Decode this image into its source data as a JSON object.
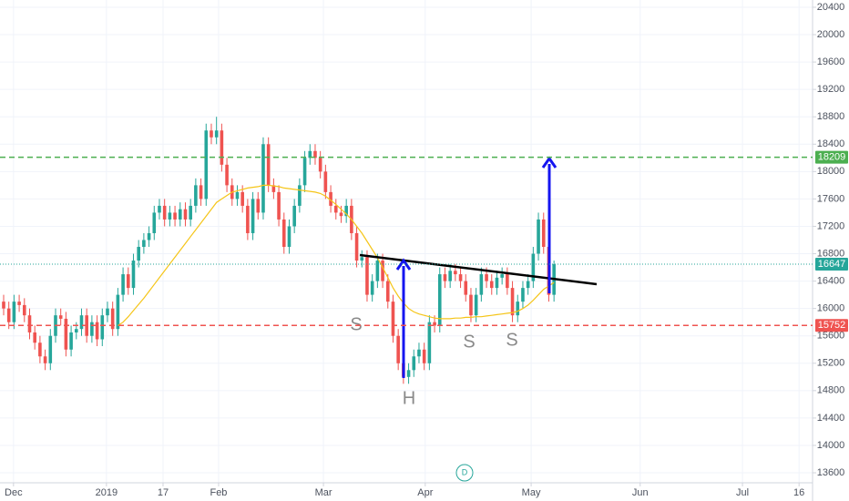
{
  "chart_data": {
    "type": "candlestick",
    "colors": {
      "up": "#26a69a",
      "down": "#ef5350",
      "ma": "#f5c518"
    },
    "open": [
      16100,
      16000,
      15800,
      16100,
      16050,
      15900,
      15650,
      15500,
      15300,
      15200,
      15600,
      15900,
      15850,
      15400,
      15650,
      15700,
      15900,
      15600,
      15800,
      15550,
      15900,
      16000,
      15700,
      16200,
      16500,
      16300,
      16700,
      16900,
      17000,
      17100,
      17400,
      17500,
      17300,
      17400,
      17300,
      17450,
      17300,
      17500,
      17800,
      17600,
      18600,
      18500,
      18600,
      18100,
      17800,
      17600,
      17700,
      17500,
      17100,
      17600,
      17400,
      18400,
      17800,
      17700,
      17300,
      16900,
      17200,
      17500,
      17800,
      18200,
      18300,
      18200,
      18000,
      17700,
      17500,
      17400,
      17350,
      17500,
      17100,
      16700,
      16750,
      16200,
      16400,
      16700,
      16400,
      16100,
      15600,
      15200,
      15000,
      15100,
      15300,
      15400,
      15200,
      15800,
      15750,
      16500,
      16400,
      16550,
      16500,
      16400,
      16200,
      15900,
      16200,
      16500,
      16400,
      16300,
      16450,
      16500,
      16300,
      15900,
      16100,
      16300,
      16400,
      16800,
      17300,
      16900,
      16200
    ],
    "high": [
      16200,
      16100,
      16200,
      16200,
      16150,
      16000,
      15750,
      15600,
      15400,
      15700,
      16000,
      16000,
      15950,
      15750,
      15800,
      16000,
      16000,
      15900,
      15900,
      16000,
      16100,
      16100,
      16300,
      16600,
      16600,
      16800,
      17000,
      17100,
      17200,
      17500,
      17600,
      17600,
      17500,
      17500,
      17550,
      17550,
      17600,
      17900,
      17900,
      18700,
      18700,
      18800,
      18700,
      18200,
      17900,
      17800,
      17800,
      17600,
      17700,
      17700,
      18500,
      18500,
      17900,
      17800,
      17400,
      17300,
      17600,
      17900,
      18300,
      18400,
      18400,
      18300,
      18100,
      17800,
      17600,
      17500,
      17600,
      17600,
      17200,
      16850,
      16850,
      16500,
      16800,
      16800,
      16500,
      16200,
      15700,
      15300,
      15200,
      15400,
      15500,
      15500,
      15900,
      15900,
      16600,
      16600,
      16650,
      16650,
      16600,
      16500,
      16300,
      16300,
      16600,
      16600,
      16500,
      16550,
      16600,
      16600,
      16400,
      16200,
      16400,
      16500,
      16900,
      17400,
      17400,
      17000,
      16700
    ],
    "low": [
      15900,
      15700,
      15700,
      15950,
      15800,
      15550,
      15400,
      15200,
      15100,
      15100,
      15500,
      15750,
      15300,
      15300,
      15550,
      15600,
      15500,
      15500,
      15450,
      15450,
      15800,
      15600,
      15600,
      16100,
      16200,
      16200,
      16600,
      16800,
      16900,
      17000,
      17300,
      17200,
      17200,
      17200,
      17200,
      17200,
      17200,
      17400,
      17500,
      17500,
      18400,
      18400,
      18000,
      17700,
      17500,
      17500,
      17400,
      17000,
      17000,
      17300,
      17300,
      17700,
      17600,
      17200,
      16800,
      16800,
      17100,
      17400,
      17700,
      18100,
      18100,
      17900,
      17600,
      17400,
      17300,
      17250,
      17250,
      17000,
      16600,
      16600,
      16100,
      16100,
      16300,
      16300,
      16000,
      15500,
      15100,
      14900,
      14900,
      15000,
      15200,
      15100,
      15100,
      15650,
      15650,
      16300,
      16300,
      16400,
      16300,
      16100,
      15800,
      15800,
      16100,
      16300,
      16200,
      16200,
      16350,
      16200,
      15800,
      15800,
      16000,
      16200,
      16300,
      16700,
      16800,
      16100,
      16100
    ],
    "close": [
      16000,
      15800,
      16100,
      16050,
      15900,
      15650,
      15500,
      15300,
      15200,
      15600,
      15900,
      15850,
      15400,
      15650,
      15700,
      15900,
      15600,
      15800,
      15550,
      15900,
      16000,
      15700,
      16200,
      16500,
      16300,
      16700,
      16900,
      17000,
      17100,
      17400,
      17500,
      17300,
      17400,
      17300,
      17450,
      17300,
      17500,
      17800,
      17600,
      18600,
      18500,
      18600,
      18100,
      17800,
      17600,
      17700,
      17500,
      17100,
      17600,
      17400,
      18400,
      17800,
      17700,
      17300,
      16900,
      17200,
      17500,
      17800,
      18200,
      18300,
      18200,
      18000,
      17700,
      17500,
      17400,
      17350,
      17500,
      17100,
      16700,
      16750,
      16200,
      16400,
      16700,
      16400,
      16100,
      15600,
      15200,
      15000,
      15100,
      15300,
      15400,
      15200,
      15800,
      15750,
      16500,
      16400,
      16550,
      16500,
      16400,
      16200,
      15900,
      16200,
      16500,
      16400,
      16300,
      16450,
      16500,
      16300,
      15900,
      16100,
      16300,
      16400,
      16800,
      17300,
      16900,
      16200,
      16647
    ],
    "ma": [
      null,
      null,
      null,
      null,
      null,
      null,
      null,
      null,
      null,
      null,
      null,
      null,
      null,
      null,
      null,
      null,
      null,
      null,
      null,
      null,
      null,
      null,
      15750,
      15800,
      15880,
      15970,
      16060,
      16150,
      16250,
      16350,
      16450,
      16550,
      16650,
      16750,
      16850,
      16950,
      17050,
      17150,
      17250,
      17350,
      17450,
      17550,
      17600,
      17650,
      17700,
      17720,
      17740,
      17760,
      17770,
      17780,
      17800,
      17800,
      17790,
      17780,
      17760,
      17750,
      17740,
      17730,
      17720,
      17710,
      17700,
      17680,
      17640,
      17580,
      17520,
      17450,
      17380,
      17300,
      17200,
      17100,
      16980,
      16860,
      16740,
      16600,
      16450,
      16300,
      16180,
      16080,
      16000,
      15950,
      15920,
      15900,
      15880,
      15860,
      15850,
      15850,
      15850,
      15860,
      15860,
      15870,
      15870,
      15880,
      15880,
      15890,
      15900,
      15910,
      15920,
      15930,
      15940,
      15960,
      16000,
      16050,
      16120,
      16200,
      16280,
      16330,
      16380
    ],
    "xlim": [
      -0.7,
      155.8
    ],
    "xticks": [
      {
        "value": 1.9,
        "label": "Dec"
      },
      {
        "value": 19.8,
        "label": "2019"
      },
      {
        "value": 30.7,
        "label": "17"
      },
      {
        "value": 41.4,
        "label": "Feb"
      },
      {
        "value": 61.6,
        "label": "Mar"
      },
      {
        "value": 81.2,
        "label": "Apr"
      },
      {
        "value": 101.6,
        "label": "May"
      },
      {
        "value": 122.6,
        "label": "Jun"
      },
      {
        "value": 142.3,
        "label": "Jul"
      },
      {
        "value": 153.2,
        "label": "16"
      }
    ],
    "ylim": [
      13454,
      20506
    ],
    "yticks": [
      13600,
      14000,
      14400,
      14800,
      15200,
      15600,
      16000,
      16400,
      16800,
      17200,
      17600,
      18000,
      18400,
      18800,
      19200,
      19600,
      20000,
      20400
    ],
    "grid": true,
    "levels": [
      {
        "value": 18209,
        "color": "#4caf50",
        "style": "dashed"
      },
      {
        "value": 16647,
        "color": "#26a69a",
        "style": "dotted"
      },
      {
        "value": 15752,
        "color": "#ef5350",
        "style": "dashed"
      }
    ],
    "annotations": [
      "S",
      "H",
      "S",
      "S"
    ],
    "marker_label": "D"
  }
}
